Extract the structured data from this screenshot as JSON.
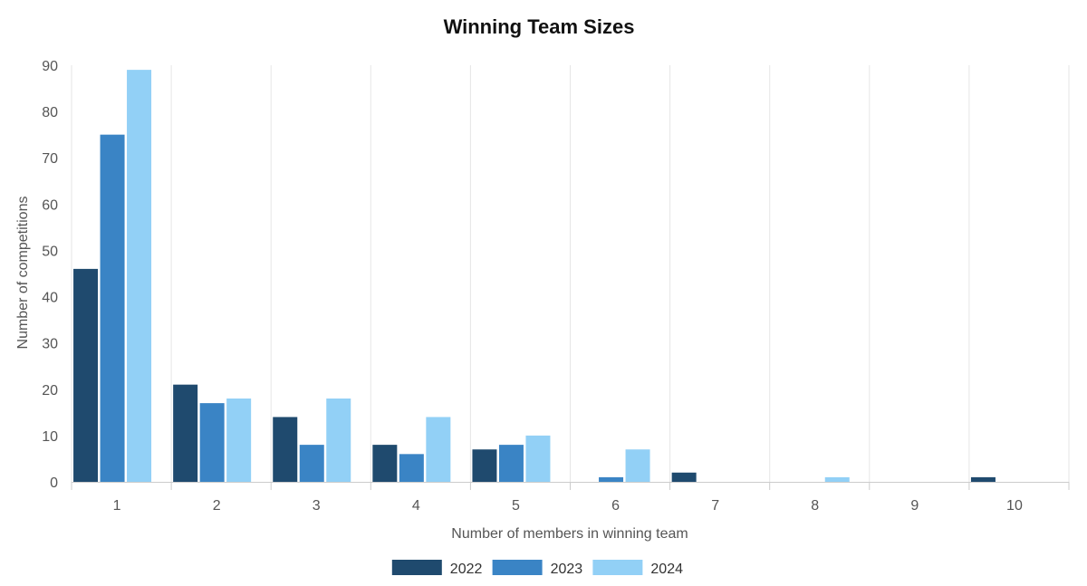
{
  "chart_data": {
    "type": "bar",
    "title": "Winning Team Sizes",
    "xlabel": "Number of members in winning team",
    "ylabel": "Number of competitions",
    "categories": [
      "1",
      "2",
      "3",
      "4",
      "5",
      "6",
      "7",
      "8",
      "9",
      "10"
    ],
    "y_ticks": [
      "0",
      "10",
      "20",
      "30",
      "40",
      "50",
      "60",
      "70",
      "80",
      "90"
    ],
    "ylim": [
      0,
      90
    ],
    "grid": "vertical",
    "legend_position": "bottom",
    "series": [
      {
        "name": "2022",
        "color": "#1f4a6e",
        "values": [
          46,
          21,
          14,
          8,
          7,
          0,
          2,
          0,
          0,
          1
        ]
      },
      {
        "name": "2023",
        "color": "#3a84c5",
        "values": [
          75,
          17,
          8,
          6,
          8,
          1,
          0,
          0,
          0,
          0
        ]
      },
      {
        "name": "2024",
        "color": "#92d0f6",
        "values": [
          89,
          18,
          18,
          14,
          10,
          7,
          0,
          1,
          0,
          0
        ]
      }
    ]
  }
}
